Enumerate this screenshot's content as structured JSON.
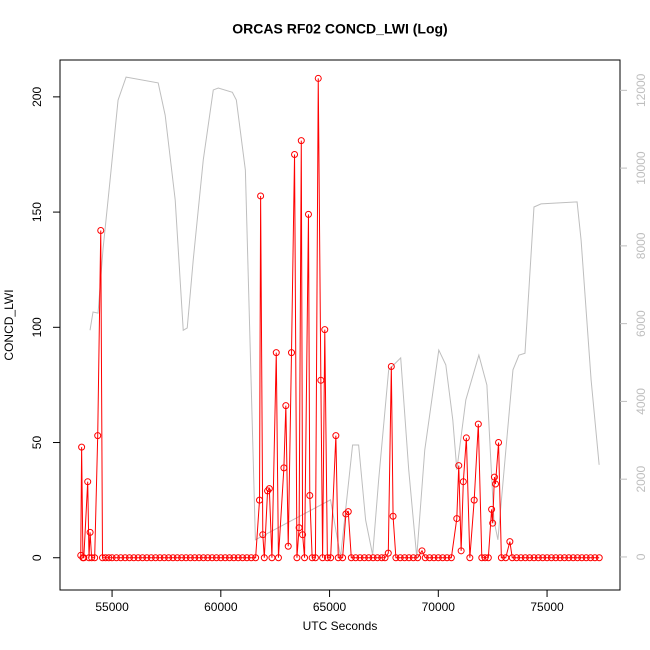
{
  "chart_data": {
    "type": "line",
    "title": "ORCAS RF02 CONCD_LWI (Log)",
    "x_label": "UTC Seconds",
    "y_label": "CONCD_LWI",
    "xlim": [
      52606,
      78354
    ],
    "xticks": [
      55000,
      60000,
      65000,
      70000,
      75000
    ],
    "ylim": [
      -14,
      216
    ],
    "yticks": [
      0,
      50,
      100,
      150,
      200
    ],
    "y2lim": [
      -850,
      12780
    ],
    "y2ticks": [
      0,
      2000,
      4000,
      6000,
      8000,
      10000,
      12000
    ],
    "series": [
      {
        "color": "#bebebe",
        "axis": "y2",
        "x": [
          53986,
          54124,
          54355,
          54585,
          54908,
          55276,
          55645,
          57120,
          57442,
          57903,
          58272,
          58456,
          58732,
          59193,
          59654,
          59884,
          60530,
          60714,
          61129,
          61590,
          65045,
          65506,
          66059,
          66336,
          66658,
          66981,
          67257,
          67718,
          68271,
          68640,
          69008,
          69377,
          70022,
          70345,
          70667,
          70852,
          71266,
          71865,
          72234,
          72556,
          72740,
          73432,
          73708,
          73985,
          74399,
          74722,
          76381,
          76565,
          77026,
          77395
        ],
        "values": [
          5830,
          6300,
          6270,
          7920,
          9690,
          11750,
          12340,
          12190,
          11360,
          9180,
          5830,
          5890,
          7640,
          10210,
          12010,
          12060,
          11950,
          11750,
          9950,
          440,
          1470,
          0,
          2880,
          2880,
          950,
          50,
          1980,
          4810,
          5120,
          2240,
          0,
          2750,
          5320,
          4940,
          3520,
          2240,
          4040,
          5190,
          4420,
          950,
          440,
          4810,
          5190,
          5240,
          9000,
          9080,
          9130,
          8150,
          4550,
          2370
        ]
      },
      {
        "color": "#ff0000",
        "marker": "circle",
        "x": [
          53560,
          53600,
          53660,
          53700,
          53880,
          53940,
          53990,
          54060,
          54200,
          54340,
          54480,
          54560,
          54700,
          54850,
          55000,
          55200,
          55400,
          55600,
          55800,
          56000,
          56200,
          56400,
          56600,
          56800,
          57000,
          57200,
          57400,
          57600,
          57800,
          58000,
          58200,
          58400,
          58600,
          58800,
          59000,
          59200,
          59400,
          59600,
          59800,
          60000,
          60200,
          60400,
          60600,
          60800,
          61000,
          61200,
          61400,
          61600,
          61780,
          61830,
          61930,
          62000,
          62150,
          62230,
          62350,
          62550,
          62650,
          62900,
          62990,
          63100,
          63250,
          63390,
          63500,
          63600,
          63700,
          63760,
          63850,
          64030,
          64090,
          64200,
          64350,
          64480,
          64600,
          64680,
          64780,
          64900,
          65050,
          65290,
          65400,
          65600,
          65750,
          65860,
          66000,
          66200,
          66400,
          66600,
          66800,
          67000,
          67200,
          67400,
          67550,
          67700,
          67840,
          67920,
          68050,
          68250,
          68450,
          68650,
          68850,
          69050,
          69250,
          69400,
          69600,
          69800,
          70000,
          70200,
          70400,
          70600,
          70850,
          70940,
          71050,
          71150,
          71290,
          71450,
          71650,
          71840,
          72000,
          72150,
          72300,
          72450,
          72500,
          72580,
          72630,
          72770,
          72900,
          73100,
          73290,
          73400,
          73600,
          73800,
          74000,
          74200,
          74400,
          74600,
          74800,
          75000,
          75200,
          75400,
          75600,
          75800,
          76000,
          76200,
          76400,
          76600,
          76800,
          77000,
          77200,
          77400
        ],
        "values": [
          1,
          48,
          0,
          0,
          33,
          0,
          11,
          0,
          0,
          53,
          142,
          0,
          0,
          0,
          0,
          0,
          0,
          0,
          0,
          0,
          0,
          0,
          0,
          0,
          0,
          0,
          0,
          0,
          0,
          0,
          0,
          0,
          0,
          0,
          0,
          0,
          0,
          0,
          0,
          0,
          0,
          0,
          0,
          0,
          0,
          0,
          0,
          0,
          25,
          157,
          10,
          0,
          29,
          30,
          0,
          89,
          0,
          39,
          66,
          5,
          89,
          175,
          0,
          13,
          181,
          10,
          0,
          149,
          27,
          0,
          0,
          208,
          77,
          0,
          99,
          0,
          0,
          53,
          0,
          0,
          19,
          20,
          0,
          0,
          0,
          0,
          0,
          0,
          0,
          0,
          0,
          2,
          83,
          18,
          0,
          0,
          0,
          0,
          0,
          0,
          3,
          0,
          0,
          0,
          0,
          0,
          0,
          0,
          17,
          40,
          3,
          33,
          52,
          0,
          25,
          58,
          0,
          0,
          0,
          21,
          15,
          35,
          32,
          50,
          0,
          0,
          7,
          0,
          0,
          0,
          0,
          0,
          0,
          0,
          0,
          0,
          0,
          0,
          0,
          0,
          0,
          0,
          0,
          0,
          0,
          0,
          0,
          0
        ]
      }
    ]
  }
}
